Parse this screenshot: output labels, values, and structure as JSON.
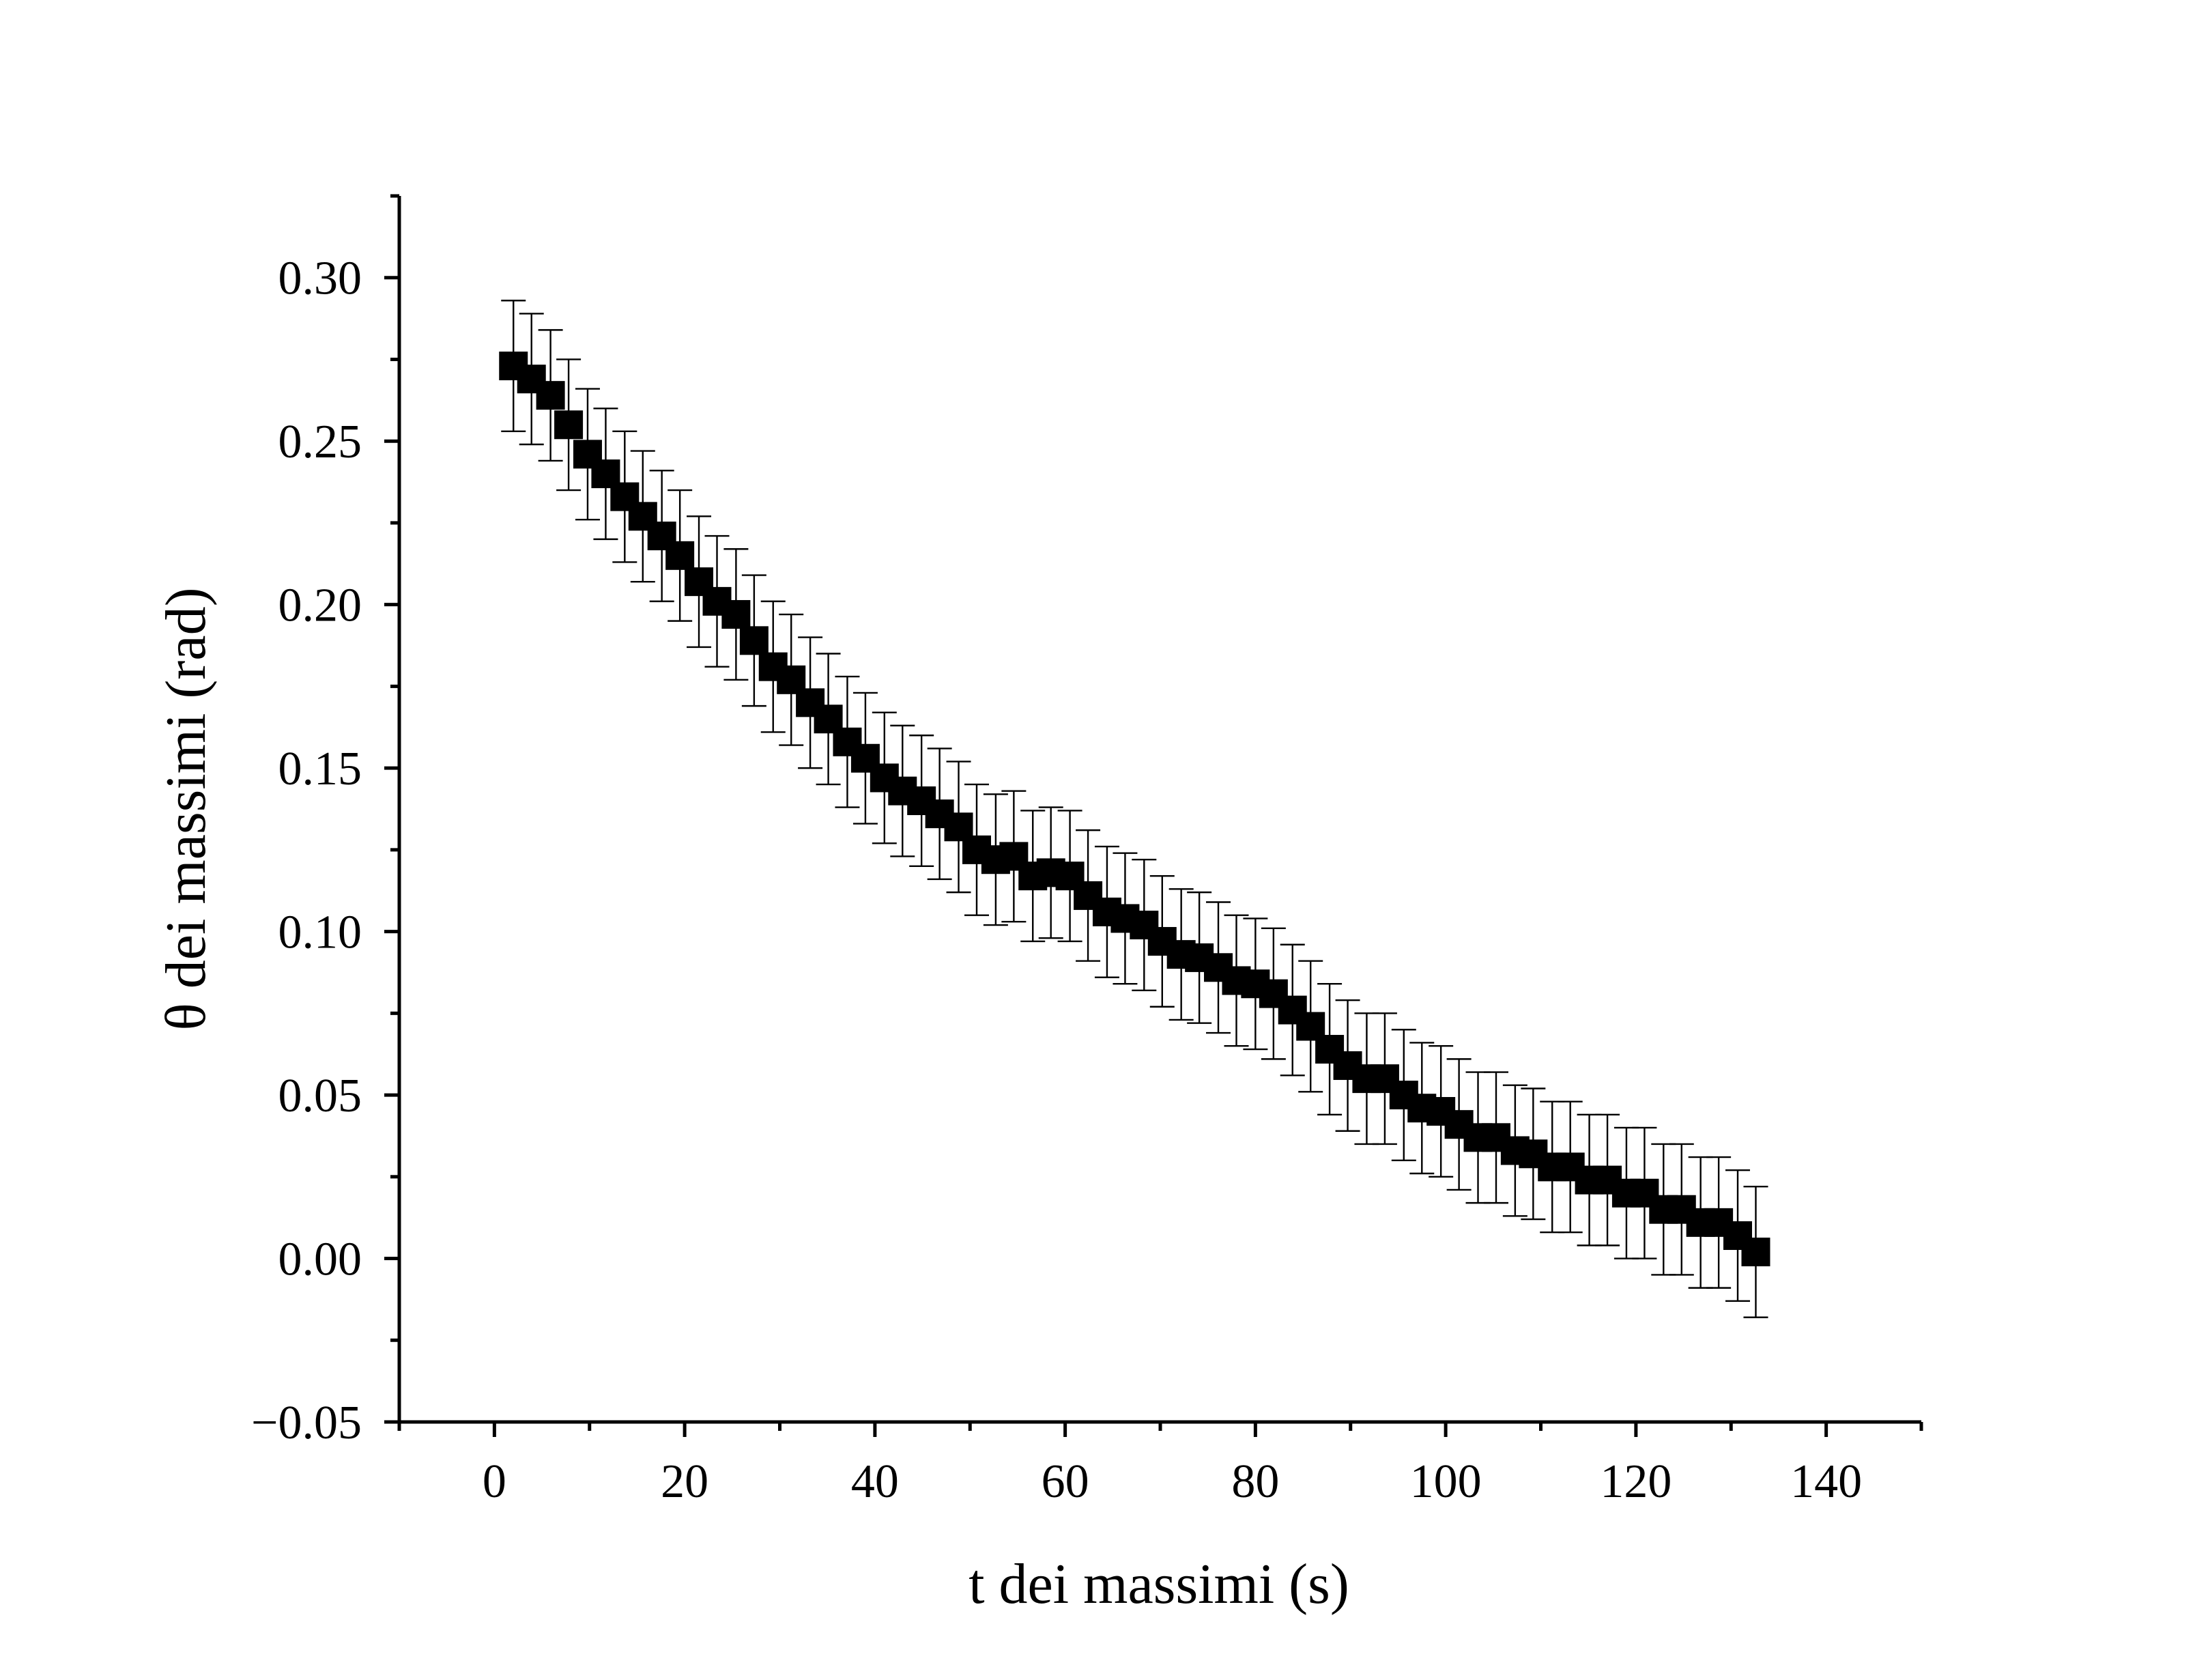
{
  "chart_data": {
    "type": "scatter",
    "xlabel": "t dei massimi (s)",
    "ylabel": "θ dei massimi (rad)",
    "xlim": [
      -10,
      150
    ],
    "ylim": [
      -0.05,
      0.325
    ],
    "x_ticks": [
      "0",
      "20",
      "40",
      "60",
      "80",
      "100",
      "120",
      "140"
    ],
    "y_ticks": [
      "−0.05",
      "0.00",
      "0.05",
      "0.10",
      "0.15",
      "0.20",
      "0.25",
      "0.30"
    ],
    "marker": "square",
    "error_bar": 0.02,
    "x": [
      2.0,
      3.9,
      5.9,
      7.8,
      9.8,
      11.7,
      13.7,
      15.6,
      17.6,
      19.5,
      21.5,
      23.4,
      25.4,
      27.3,
      29.3,
      31.2,
      33.2,
      35.1,
      37.1,
      39.0,
      41.0,
      42.9,
      44.9,
      46.8,
      48.8,
      50.7,
      52.7,
      54.6,
      56.6,
      58.5,
      60.5,
      62.4,
      64.4,
      66.3,
      68.3,
      70.2,
      72.2,
      74.1,
      76.1,
      78.0,
      80.0,
      81.9,
      83.9,
      85.8,
      87.8,
      89.7,
      91.7,
      93.6,
      95.6,
      97.5,
      99.5,
      101.4,
      103.4,
      105.3,
      107.3,
      109.2,
      111.2,
      113.1,
      115.1,
      117.0,
      119.0,
      120.9,
      122.9,
      124.8,
      126.8,
      128.7,
      130.7,
      132.6
    ],
    "y": [
      0.273,
      0.269,
      0.264,
      0.255,
      0.246,
      0.24,
      0.233,
      0.227,
      0.221,
      0.215,
      0.207,
      0.201,
      0.197,
      0.189,
      0.181,
      0.177,
      0.17,
      0.165,
      0.158,
      0.153,
      0.147,
      0.143,
      0.14,
      0.136,
      0.132,
      0.125,
      0.122,
      0.123,
      0.117,
      0.118,
      0.117,
      0.111,
      0.106,
      0.104,
      0.102,
      0.097,
      0.093,
      0.092,
      0.089,
      0.085,
      0.084,
      0.081,
      0.076,
      0.071,
      0.064,
      0.059,
      0.055,
      0.055,
      0.05,
      0.046,
      0.045,
      0.041,
      0.037,
      0.037,
      0.033,
      0.032,
      0.028,
      0.028,
      0.024,
      0.024,
      0.02,
      0.02,
      0.015,
      0.015,
      0.011,
      0.011,
      0.007,
      0.002
    ]
  }
}
